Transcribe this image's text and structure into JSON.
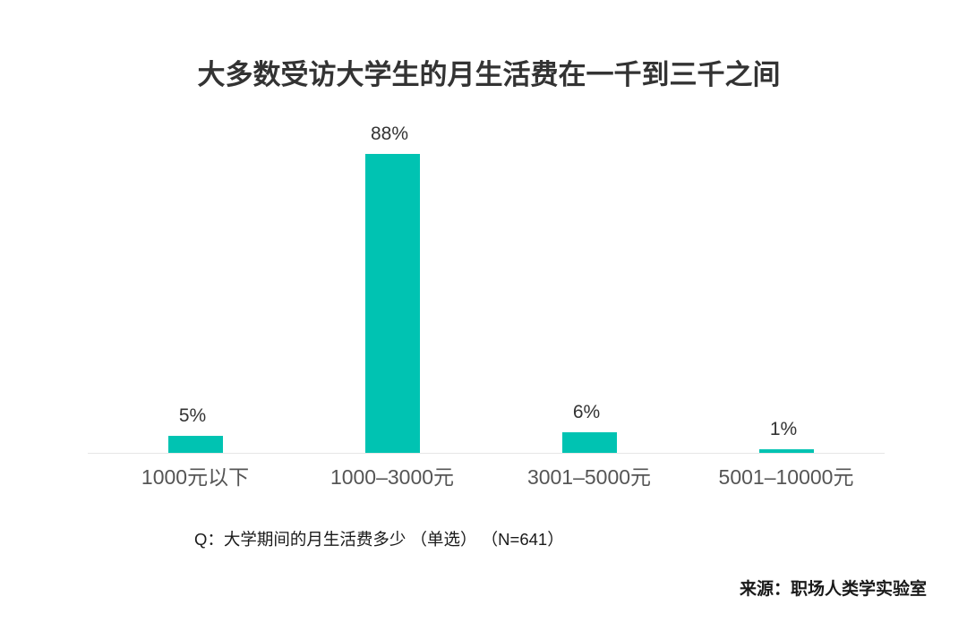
{
  "chart_data": {
    "type": "bar",
    "title": "大多数受访大学生的月生活费在一千到三千之间",
    "categories": [
      "1000元以下",
      "1000–3000元",
      "3001–5000元",
      "5001–10000元"
    ],
    "values": [
      5,
      88,
      6,
      1
    ],
    "value_labels": [
      "5%",
      "88%",
      "6%",
      "1%"
    ],
    "xlabel": "",
    "ylabel": "",
    "ylim": [
      0,
      100
    ],
    "grid": false,
    "legend": false,
    "bar_color": "#00c3b2",
    "axis_line_color": "#e7e7e7"
  },
  "footnote": "Q：大学期间的月生活费多少 （单选） （N=641）",
  "source": "来源：职场人类学实验室"
}
